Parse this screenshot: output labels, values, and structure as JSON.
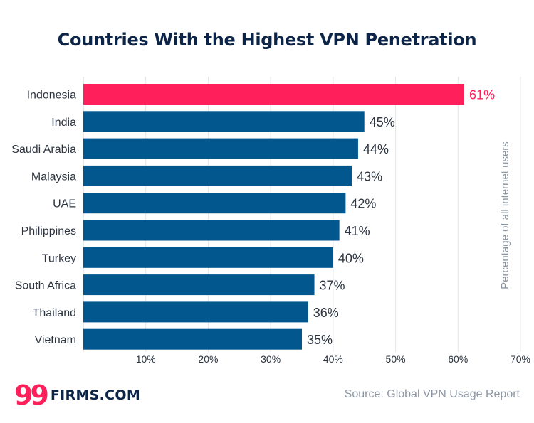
{
  "chart_data": {
    "type": "bar",
    "orientation": "horizontal",
    "title": "Countries With the Highest VPN Penetration",
    "ylabel": "Percentage of all internet users",
    "xlim": [
      0,
      70
    ],
    "x_ticks": [
      "10%",
      "20%",
      "30%",
      "40%",
      "50%",
      "60%",
      "70%"
    ],
    "grid": true,
    "categories": [
      "Indonesia",
      "India",
      "Saudi Arabia",
      "Malaysia",
      "UAE",
      "Philippines",
      "Turkey",
      "South Africa",
      "Thailand",
      "Vietnam"
    ],
    "values": [
      61,
      45,
      44,
      43,
      42,
      41,
      40,
      37,
      36,
      35
    ],
    "value_labels": [
      "61%",
      "45%",
      "44%",
      "43%",
      "42%",
      "41%",
      "40%",
      "37%",
      "36%",
      "35%"
    ],
    "highlight_index": 0,
    "colors": {
      "highlight": "#ff1f5a",
      "bar": "#03578f",
      "grid": "#e3e6ea",
      "text": "#2b3440",
      "axis_title": "#8c96a3"
    }
  },
  "footer": {
    "logo_mark": "99",
    "logo_text": "FIRMS.COM",
    "source": "Source: Global VPN Usage Report"
  }
}
